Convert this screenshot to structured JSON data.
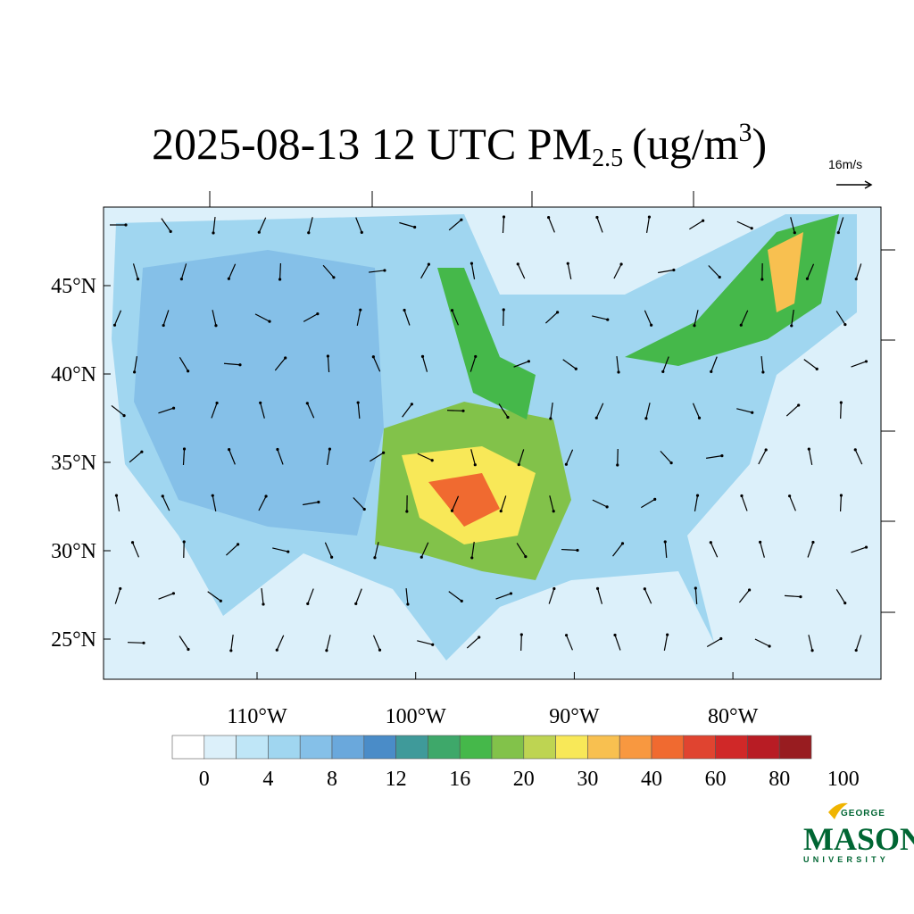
{
  "title": {
    "main": "2025-08-13 12 UTC PM",
    "subscript": "2.5",
    "unit": "(ug/m",
    "superscript": "3",
    "close": ")"
  },
  "wind_reference": "16m/s",
  "map": {
    "lat_labels": [
      "45°N",
      "40°N",
      "35°N",
      "30°N",
      "25°N"
    ],
    "lon_labels": [
      "110°W",
      "100°W",
      "90°W",
      "80°W"
    ]
  },
  "colorbar": {
    "labels": [
      0,
      4,
      8,
      12,
      16,
      20,
      30,
      40,
      60,
      80,
      100
    ],
    "colors": [
      "#ffffff",
      "#dcf0fa",
      "#bfe6f7",
      "#a0d6f0",
      "#85c0e8",
      "#6aa8dc",
      "#4a8cc8",
      "#3f9a9a",
      "#3ea86a",
      "#45b84a",
      "#82c24a",
      "#bed452",
      "#f8e858",
      "#f8c050",
      "#f89840",
      "#f06a30",
      "#e04430",
      "#d02828",
      "#b81c24",
      "#981c20"
    ]
  },
  "logo": {
    "top": "GEORGE",
    "main": "MASON",
    "bottom": "UNIVERSITY"
  }
}
